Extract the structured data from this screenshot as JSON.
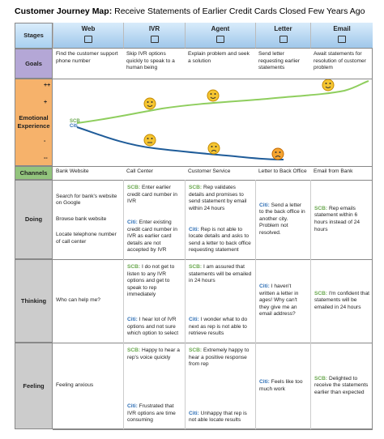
{
  "title": {
    "bold": "Customer Journey Map:",
    "rest": "Receive Statements of Earlier Credit Cards Closed Few Years Ago"
  },
  "stages": {
    "label": "Stages",
    "columns": [
      "Web",
      "IVR",
      "Agent",
      "Letter",
      "Email"
    ]
  },
  "goals": {
    "label": "Goals",
    "cells": [
      "Find the customer support phone number",
      "Skip IVR options quickly to speak to a human being",
      "Explain problem and seek a solution",
      "Send letter requesting earlier statements",
      "Await statements for resolution of customer problem"
    ]
  },
  "emotional_experience": {
    "label": "Emotional Experience",
    "scale": [
      "++",
      "+",
      "-",
      "--"
    ],
    "legend": [
      {
        "name": "SCB",
        "color": "#6aa84f"
      },
      {
        "name": "Citi",
        "color": "#2f6fb5"
      }
    ]
  },
  "channels": {
    "label": "Channels",
    "cells": [
      "Bank Website",
      "Call Center",
      "Customer Service",
      "Letter to Back Office",
      "Email from Bank"
    ]
  },
  "doing": {
    "label": "Doing",
    "cells": [
      [
        {
          "text": "Search for bank's website on Google"
        },
        {
          "text": "Browse bank website"
        },
        {
          "text": "Locate telephone number of call center"
        }
      ],
      [
        {
          "bank": "SCB:",
          "text": "Enter earlier credit card number in IVR"
        },
        {
          "bank": "Citi:",
          "text": "Enter existing credit card number in IVR as earlier card details are not accepted by IVR"
        }
      ],
      [
        {
          "bank": "SCB:",
          "text": "Rep validates details and promises to send statement by email within 24 hours"
        },
        {
          "bank": "Citi:",
          "text": "Rep is not able to locate details and asks to send a letter to back office requesting statement"
        }
      ],
      [
        {
          "bank": "Citi:",
          "text": "Send a letter to the back office in another city. Problem not resolved."
        }
      ],
      [
        {
          "bank": "SCB:",
          "text": "Rep emails statement within 6 hours instead of 24 hours"
        }
      ]
    ]
  },
  "thinking": {
    "label": "Thinking",
    "cells": [
      [
        {
          "text": "Who can help me?"
        }
      ],
      [
        {
          "bank": "SCB:",
          "text": "I do not get to listen to any IVR options and get to speak to rep immediately"
        },
        {
          "bank": "Citi:",
          "text": "I hear lot of IVR options and not sure which option to select"
        }
      ],
      [
        {
          "bank": "SCB:",
          "text": "I am assured that statements will be emailed in 24 hours"
        },
        {
          "bank": "Citi:",
          "text": "I wonder what to do next as rep is not able to retrieve results"
        }
      ],
      [
        {
          "bank": "Citi:",
          "text": "I haven't written a letter in ages! Why can't they give me an email address?"
        }
      ],
      [
        {
          "bank": "SCB:",
          "text": "I'm confident that statements will be emailed in 24 hours"
        }
      ]
    ]
  },
  "feeling": {
    "label": "Feeling",
    "cells": [
      [
        {
          "text": "Feeling anxious"
        }
      ],
      [
        {
          "bank": "SCB:",
          "text": "Happy to hear a rep's voice quickly"
        },
        {
          "bank": "Citi:",
          "text": "Frustrated that IVR options are time consuming"
        }
      ],
      [
        {
          "bank": "SCB:",
          "text": "Extremely happy to hear a positive response from rep"
        },
        {
          "bank": "Citi:",
          "text": "Unhappy that rep is not able locate results"
        }
      ],
      [
        {
          "bank": "Citi:",
          "text": "Feels like too much work"
        }
      ],
      [
        {
          "bank": "SCB:",
          "text": "Delighted to receive the statements earlier than expected"
        }
      ]
    ]
  }
}
